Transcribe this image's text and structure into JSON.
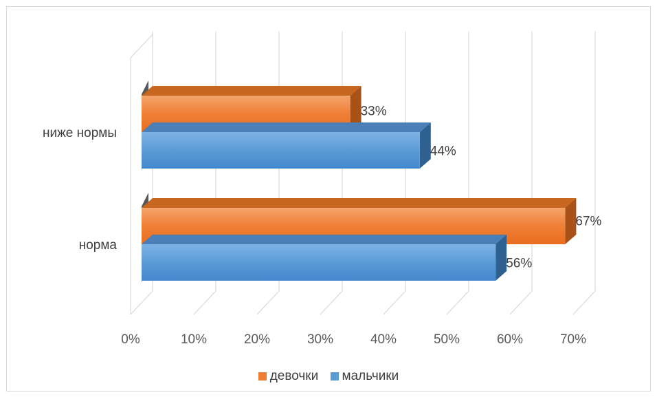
{
  "chart_data": {
    "type": "bar",
    "orientation": "horizontal",
    "style": "3d",
    "categories": [
      "ниже нормы",
      "норма"
    ],
    "series": [
      {
        "name": "девочки",
        "values": [
          33,
          67
        ],
        "labels": [
          "33%",
          "67%"
        ],
        "color": "#ed7d31"
      },
      {
        "name": "мальчики",
        "values": [
          44,
          56
        ],
        "labels": [
          "44%",
          "56%"
        ],
        "color": "#5b9bd5"
      }
    ],
    "xlim": [
      0,
      70
    ],
    "x_ticks": [
      "0%",
      "10%",
      "20%",
      "30%",
      "40%",
      "50%",
      "60%",
      "70%"
    ],
    "grid": true,
    "legend": "bottom"
  }
}
